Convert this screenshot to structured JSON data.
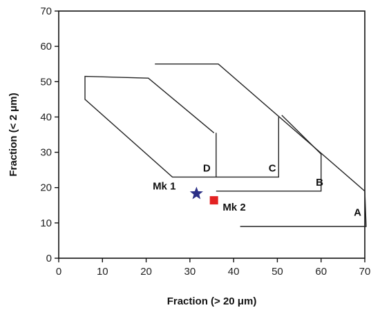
{
  "chart_data": {
    "type": "line",
    "title": "",
    "xlabel": "Fraction (> 20 μm)",
    "ylabel": "Fraction (< 2 μm)",
    "xlim": [
      0,
      70
    ],
    "ylim": [
      0,
      70
    ],
    "x_ticks": [
      0,
      10,
      20,
      30,
      40,
      50,
      60,
      70
    ],
    "y_ticks": [
      0,
      10,
      20,
      30,
      40,
      50,
      60,
      70
    ],
    "grid": false,
    "zones": [
      {
        "label": "A",
        "points": [
          [
            22,
            55
          ],
          [
            36.5,
            55
          ],
          [
            70,
            19
          ],
          [
            70.3,
            9
          ],
          [
            41.5,
            9
          ]
        ],
        "label_at": [
          67.5,
          12
        ]
      },
      {
        "label": "B",
        "points": [
          [
            51,
            40.5
          ],
          [
            60,
            29.5
          ],
          [
            60,
            19
          ],
          [
            36,
            19
          ]
        ],
        "label_at": [
          58.8,
          20.5
        ]
      },
      {
        "label": "C",
        "points": [
          [
            50.3,
            40
          ],
          [
            50.3,
            23
          ],
          [
            36,
            23
          ]
        ],
        "label_at": [
          48,
          24.5
        ]
      },
      {
        "label": "D",
        "points": [
          [
            35.5,
            35.5
          ],
          [
            20.5,
            51
          ],
          [
            6,
            51.5
          ],
          [
            6,
            45
          ],
          [
            26,
            23
          ],
          [
            36,
            23
          ],
          [
            36,
            35.5
          ]
        ],
        "label_at": [
          33,
          24.5
        ]
      }
    ],
    "points": [
      {
        "label": "Mk 1",
        "x": 31.5,
        "y": 18.3,
        "marker": "star",
        "color": "#2b2f86",
        "label_at": [
          21.5,
          19.5
        ]
      },
      {
        "label": "Mk 2",
        "x": 35.5,
        "y": 16.4,
        "marker": "square",
        "color": "#e32222",
        "label_at": [
          37.5,
          13.5
        ]
      }
    ]
  }
}
